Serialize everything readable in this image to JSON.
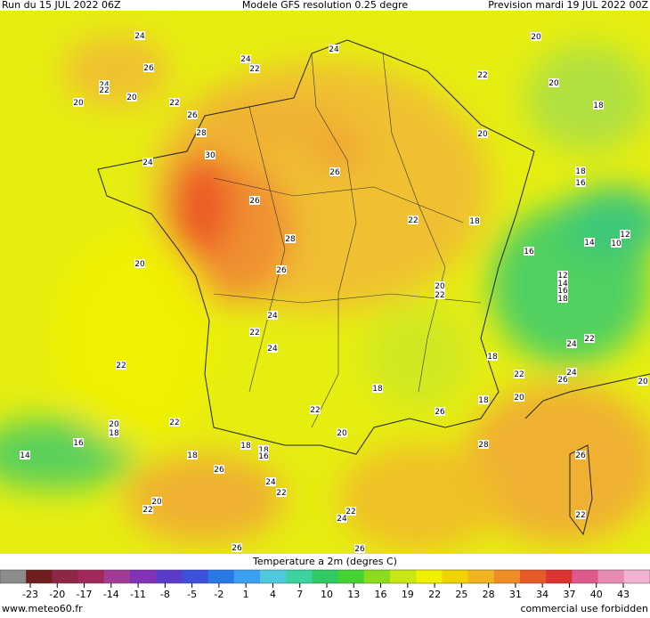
{
  "header": {
    "run": "Run du 15 JUL 2022 06Z",
    "model": "Modele GFS resolution 0.25 degre",
    "forecast": "Prevision mardi 19 JUL 2022 00Z"
  },
  "contour_labels": [
    24,
    26,
    24,
    22,
    24,
    22,
    20,
    20,
    22,
    26,
    28,
    30,
    24,
    24,
    20,
    22,
    20,
    18,
    20,
    26,
    26,
    18,
    16,
    22,
    18,
    28,
    16,
    14,
    10,
    12,
    20,
    26,
    12,
    14,
    16,
    18,
    20,
    22,
    24,
    22,
    24,
    24,
    22,
    22,
    18,
    22,
    24,
    26,
    20,
    18,
    18,
    20,
    26,
    22,
    20,
    18,
    22,
    16,
    20,
    28,
    14,
    18,
    18,
    18,
    16,
    26,
    26,
    24,
    22,
    20,
    22,
    22,
    22,
    24,
    26,
    26
  ],
  "colorbar": {
    "title": "Temperature a 2m (degres C)",
    "ticks": [
      -23,
      -20,
      -17,
      -14,
      -11,
      -8,
      -5,
      -2,
      1,
      4,
      7,
      10,
      13,
      16,
      19,
      22,
      25,
      28,
      31,
      34,
      37,
      40,
      43
    ],
    "colors": [
      "#8c8c8c",
      "#6e1e1e",
      "#8c2846",
      "#a0285a",
      "#a03c96",
      "#8232b4",
      "#5a3cc8",
      "#3c50dc",
      "#2878e6",
      "#3ca0f0",
      "#50c8dc",
      "#3cd2a0",
      "#32c864",
      "#46d232",
      "#8cdc1e",
      "#c8e614",
      "#f0f000",
      "#f0d200",
      "#f0b41e",
      "#f08c28",
      "#e65a28",
      "#dc3232",
      "#dc5a8c",
      "#e68cb4",
      "#f0b4d2"
    ]
  },
  "footer": {
    "site": "www.meteo60.fr",
    "notice": "commercial use forbidden"
  }
}
